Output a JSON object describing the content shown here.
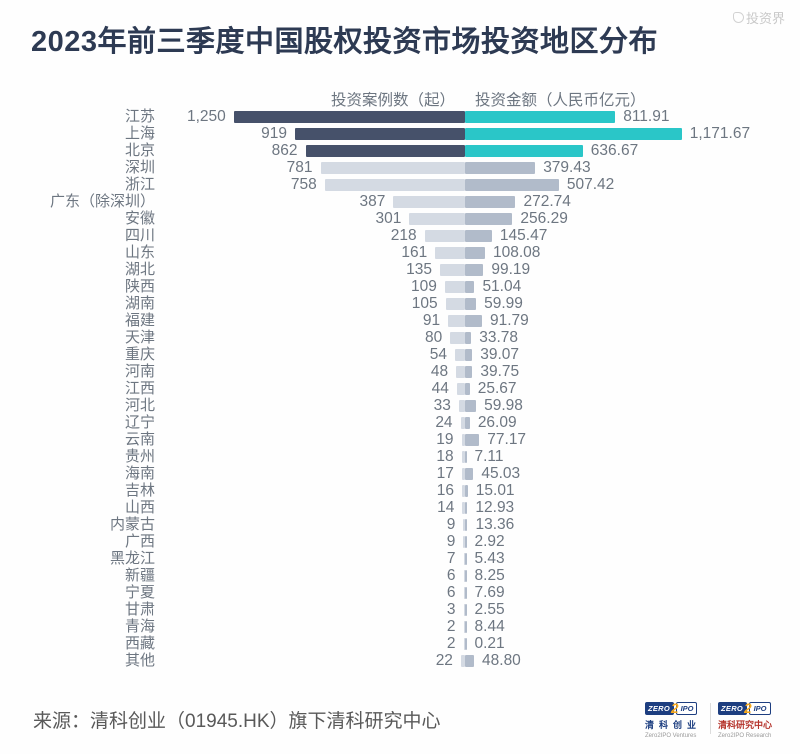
{
  "title": "2023年前三季度中国股权投资市场投资地区分布",
  "watermark": "投资界",
  "chart_data": {
    "type": "bar",
    "orientation": "diverging-horizontal",
    "left_header": "投资案例数（起）",
    "right_header": "投资金额（人民币亿元）",
    "categories": [
      "江苏",
      "上海",
      "北京",
      "深圳",
      "浙江",
      "广东（除深圳）",
      "安徽",
      "四川",
      "山东",
      "湖北",
      "陕西",
      "湖南",
      "福建",
      "天津",
      "重庆",
      "河南",
      "江西",
      "河北",
      "辽宁",
      "云南",
      "贵州",
      "海南",
      "吉林",
      "山西",
      "内蒙古",
      "广西",
      "黑龙江",
      "新疆",
      "宁夏",
      "甘肃",
      "青海",
      "西藏",
      "其他"
    ],
    "series": [
      {
        "name": "投资案例数（起）",
        "values": [
          1250,
          919,
          862,
          781,
          758,
          387,
          301,
          218,
          161,
          135,
          109,
          105,
          91,
          80,
          54,
          48,
          44,
          33,
          24,
          19,
          18,
          17,
          16,
          14,
          9,
          9,
          7,
          6,
          6,
          3,
          2,
          2,
          22
        ]
      },
      {
        "name": "投资金额（人民币亿元）",
        "values": [
          811.91,
          1171.67,
          636.67,
          379.43,
          507.42,
          272.74,
          256.29,
          145.47,
          108.08,
          99.19,
          51.04,
          59.99,
          91.79,
          33.78,
          39.07,
          39.75,
          25.67,
          59.98,
          26.09,
          77.17,
          7.11,
          45.03,
          15.01,
          12.93,
          13.36,
          2.92,
          5.43,
          8.25,
          7.69,
          2.55,
          8.44,
          0.21,
          48.8
        ]
      }
    ],
    "highlight_top_n": 3,
    "colors": {
      "cases_highlight": "#46516a",
      "cases_normal": "#d4dae3",
      "amount_highlight": "#2ac6c8",
      "amount_normal": "#b1bbca"
    }
  },
  "source": "来源：清科创业（01945.HK）旗下清科研究中心",
  "footer_logos": [
    {
      "zero": "ZERO",
      "two": "2",
      "ipo": "IPO",
      "cn": "清科创业",
      "en": "Zero2IPO Ventures",
      "cn_color": "#1d3e80",
      "cn_letter_spacing": "5px"
    },
    {
      "zero": "ZERO",
      "two": "2",
      "ipo": "IPO",
      "cn": "清科研究中心",
      "en": "Zero2IPO Research",
      "cn_color": "#b5342c",
      "cn_letter_spacing": "0px"
    }
  ]
}
